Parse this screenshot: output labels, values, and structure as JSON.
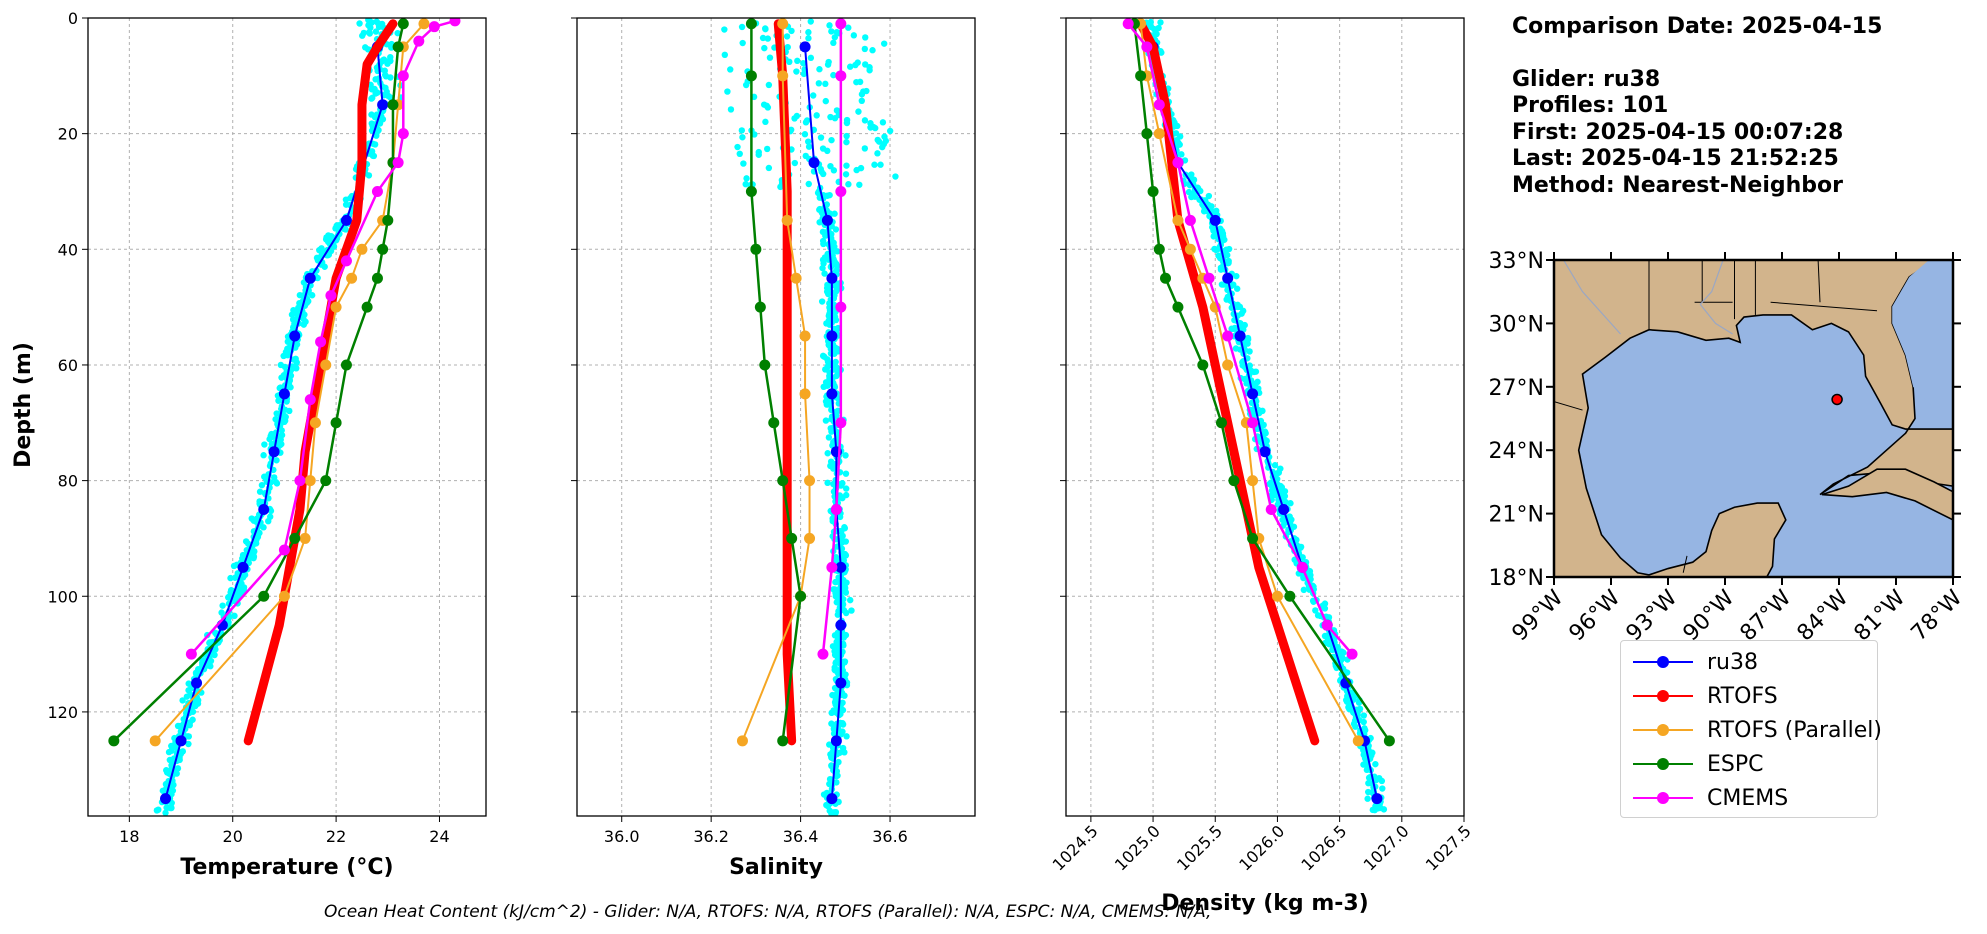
{
  "chart_data": {
    "type": "line",
    "series_styles": [
      {
        "name": "ru38",
        "color": "#0000ff",
        "marker": true,
        "lw": 2
      },
      {
        "name": "RTOFS",
        "color": "#ff0000",
        "marker": false,
        "lw": 9
      },
      {
        "name": "RTOFS (Parallel)",
        "color": "#f5a623",
        "marker": true,
        "lw": 2
      },
      {
        "name": "ESPC",
        "color": "#008000",
        "marker": true,
        "lw": 2.5
      },
      {
        "name": "CMEMS",
        "color": "#ff00ff",
        "marker": true,
        "lw": 2.5
      }
    ],
    "glider_cloud_color": "#00ffff",
    "ylabel": "Depth (m)",
    "ylim": [
      0,
      138
    ],
    "yticks": [
      0,
      20,
      40,
      60,
      80,
      100,
      120
    ],
    "panels": [
      {
        "id": "temperature",
        "xlabel": "Temperature (°C)",
        "xlim": [
          17.2,
          24.9
        ],
        "xticks": [
          18,
          20,
          22,
          24
        ],
        "xtick_labels": [
          "18",
          "20",
          "22",
          "24"
        ],
        "tick_rotation": 0,
        "series": [
          {
            "name": "ru38",
            "points": [
              [
                22.8,
                5
              ],
              [
                22.9,
                15
              ],
              [
                22.2,
                35
              ],
              [
                21.5,
                45
              ],
              [
                21.2,
                55
              ],
              [
                21.0,
                65
              ],
              [
                20.8,
                75
              ],
              [
                20.6,
                85
              ],
              [
                20.2,
                95
              ],
              [
                19.8,
                105
              ],
              [
                19.3,
                115
              ],
              [
                19.0,
                125
              ],
              [
                18.7,
                135
              ]
            ]
          },
          {
            "name": "RTOFS",
            "points": [
              [
                23.1,
                1
              ],
              [
                22.8,
                5
              ],
              [
                22.6,
                8
              ],
              [
                22.5,
                15
              ],
              [
                22.5,
                25
              ],
              [
                22.4,
                35
              ],
              [
                22.0,
                45
              ],
              [
                21.8,
                55
              ],
              [
                21.6,
                65
              ],
              [
                21.4,
                75
              ],
              [
                21.3,
                85
              ],
              [
                21.1,
                95
              ],
              [
                20.9,
                105
              ],
              [
                20.6,
                115
              ],
              [
                20.3,
                125
              ]
            ]
          },
          {
            "name": "RTOFS (Parallel)",
            "points": [
              [
                23.7,
                1
              ],
              [
                23.3,
                5
              ],
              [
                23.2,
                15
              ],
              [
                23.1,
                25
              ],
              [
                22.9,
                35
              ],
              [
                22.5,
                40
              ],
              [
                22.3,
                45
              ],
              [
                22.0,
                50
              ],
              [
                21.8,
                60
              ],
              [
                21.6,
                70
              ],
              [
                21.5,
                80
              ],
              [
                21.4,
                90
              ],
              [
                21.0,
                100
              ],
              [
                18.5,
                125
              ]
            ]
          },
          {
            "name": "ESPC",
            "points": [
              [
                23.3,
                1
              ],
              [
                23.2,
                5
              ],
              [
                23.1,
                15
              ],
              [
                23.1,
                25
              ],
              [
                23.0,
                35
              ],
              [
                22.9,
                40
              ],
              [
                22.8,
                45
              ],
              [
                22.6,
                50
              ],
              [
                22.2,
                60
              ],
              [
                22.0,
                70
              ],
              [
                21.8,
                80
              ],
              [
                21.2,
                90
              ],
              [
                20.6,
                100
              ],
              [
                17.7,
                125
              ]
            ]
          },
          {
            "name": "CMEMS",
            "points": [
              [
                24.3,
                0.5
              ],
              [
                23.9,
                1.5
              ],
              [
                23.6,
                4
              ],
              [
                23.3,
                10
              ],
              [
                23.3,
                20
              ],
              [
                23.2,
                25
              ],
              [
                22.8,
                30
              ],
              [
                22.2,
                42
              ],
              [
                21.9,
                48
              ],
              [
                21.7,
                56
              ],
              [
                21.5,
                66
              ],
              [
                21.3,
                80
              ],
              [
                21.0,
                92
              ],
              [
                19.2,
                110
              ]
            ]
          }
        ]
      },
      {
        "id": "salinity",
        "xlabel": "Salinity",
        "xlim": [
          35.9,
          36.79
        ],
        "xticks": [
          36.0,
          36.2,
          36.4,
          36.6
        ],
        "xtick_labels": [
          "36.0",
          "36.2",
          "36.4",
          "36.6"
        ],
        "tick_rotation": 0,
        "series": [
          {
            "name": "ru38",
            "points": [
              [
                36.41,
                5
              ],
              [
                36.43,
                25
              ],
              [
                36.46,
                35
              ],
              [
                36.47,
                45
              ],
              [
                36.47,
                55
              ],
              [
                36.47,
                65
              ],
              [
                36.48,
                75
              ],
              [
                36.48,
                85
              ],
              [
                36.49,
                95
              ],
              [
                36.49,
                105
              ],
              [
                36.49,
                115
              ],
              [
                36.48,
                125
              ],
              [
                36.47,
                135
              ]
            ]
          },
          {
            "name": "RTOFS",
            "points": [
              [
                36.35,
                1
              ],
              [
                36.36,
                10
              ],
              [
                36.37,
                30
              ],
              [
                36.37,
                50
              ],
              [
                36.37,
                70
              ],
              [
                36.37,
                90
              ],
              [
                36.37,
                110
              ],
              [
                36.38,
                125
              ]
            ]
          },
          {
            "name": "RTOFS (Parallel)",
            "points": [
              [
                36.36,
                1
              ],
              [
                36.36,
                10
              ],
              [
                36.37,
                35
              ],
              [
                36.39,
                45
              ],
              [
                36.41,
                55
              ],
              [
                36.41,
                65
              ],
              [
                36.42,
                80
              ],
              [
                36.42,
                90
              ],
              [
                36.4,
                100
              ],
              [
                36.27,
                125
              ]
            ]
          },
          {
            "name": "ESPC",
            "points": [
              [
                36.29,
                1
              ],
              [
                36.29,
                10
              ],
              [
                36.29,
                30
              ],
              [
                36.3,
                40
              ],
              [
                36.31,
                50
              ],
              [
                36.32,
                60
              ],
              [
                36.34,
                70
              ],
              [
                36.36,
                80
              ],
              [
                36.38,
                90
              ],
              [
                36.4,
                100
              ],
              [
                36.36,
                125
              ]
            ]
          },
          {
            "name": "CMEMS",
            "points": [
              [
                36.49,
                1
              ],
              [
                36.49,
                10
              ],
              [
                36.49,
                30
              ],
              [
                36.49,
                50
              ],
              [
                36.49,
                70
              ],
              [
                36.48,
                85
              ],
              [
                36.47,
                95
              ],
              [
                36.45,
                110
              ]
            ]
          }
        ]
      },
      {
        "id": "density",
        "xlabel": "Density (kg m-3)",
        "xlim": [
          1024.3,
          1027.5
        ],
        "xticks": [
          1024.5,
          1025.0,
          1025.5,
          1026.0,
          1026.5,
          1027.0,
          1027.5
        ],
        "xtick_labels": [
          "1024.5",
          "1025.0",
          "1025.5",
          "1026.0",
          "1026.5",
          "1027.0",
          "1027.5"
        ],
        "tick_rotation": -45,
        "series": [
          {
            "name": "ru38",
            "points": [
              [
                1025.0,
                5
              ],
              [
                1025.2,
                25
              ],
              [
                1025.5,
                35
              ],
              [
                1025.6,
                45
              ],
              [
                1025.7,
                55
              ],
              [
                1025.8,
                65
              ],
              [
                1025.9,
                75
              ],
              [
                1026.05,
                85
              ],
              [
                1026.2,
                95
              ],
              [
                1026.4,
                105
              ],
              [
                1026.55,
                115
              ],
              [
                1026.7,
                125
              ],
              [
                1026.8,
                135
              ]
            ]
          },
          {
            "name": "RTOFS",
            "points": [
              [
                1024.9,
                1
              ],
              [
                1025.0,
                5
              ],
              [
                1025.1,
                15
              ],
              [
                1025.2,
                35
              ],
              [
                1025.4,
                50
              ],
              [
                1025.55,
                65
              ],
              [
                1025.7,
                80
              ],
              [
                1025.85,
                95
              ],
              [
                1026.0,
                105
              ],
              [
                1026.15,
                115
              ],
              [
                1026.3,
                125
              ]
            ]
          },
          {
            "name": "RTOFS (Parallel)",
            "points": [
              [
                1024.9,
                1
              ],
              [
                1024.95,
                10
              ],
              [
                1025.05,
                20
              ],
              [
                1025.2,
                35
              ],
              [
                1025.3,
                40
              ],
              [
                1025.4,
                45
              ],
              [
                1025.5,
                50
              ],
              [
                1025.6,
                60
              ],
              [
                1025.75,
                70
              ],
              [
                1025.8,
                80
              ],
              [
                1025.85,
                90
              ],
              [
                1026.0,
                100
              ],
              [
                1026.65,
                125
              ]
            ]
          },
          {
            "name": "ESPC",
            "points": [
              [
                1024.85,
                1
              ],
              [
                1024.9,
                10
              ],
              [
                1024.95,
                20
              ],
              [
                1025.0,
                30
              ],
              [
                1025.05,
                40
              ],
              [
                1025.1,
                45
              ],
              [
                1025.2,
                50
              ],
              [
                1025.4,
                60
              ],
              [
                1025.55,
                70
              ],
              [
                1025.65,
                80
              ],
              [
                1025.8,
                90
              ],
              [
                1026.1,
                100
              ],
              [
                1026.9,
                125
              ]
            ]
          },
          {
            "name": "CMEMS",
            "points": [
              [
                1024.8,
                1
              ],
              [
                1024.95,
                5
              ],
              [
                1025.05,
                15
              ],
              [
                1025.2,
                25
              ],
              [
                1025.3,
                35
              ],
              [
                1025.45,
                45
              ],
              [
                1025.6,
                55
              ],
              [
                1025.8,
                70
              ],
              [
                1025.95,
                85
              ],
              [
                1026.2,
                95
              ],
              [
                1026.4,
                105
              ],
              [
                1026.6,
                110
              ]
            ]
          }
        ]
      }
    ],
    "map": {
      "lon_ticks": [
        -99,
        -96,
        -93,
        -90,
        -87,
        -84,
        -81,
        -78
      ],
      "lon_labels": [
        "99°W",
        "96°W",
        "93°W",
        "90°W",
        "87°W",
        "84°W",
        "81°W",
        "78°W"
      ],
      "lat_ticks": [
        18,
        21,
        24,
        27,
        30,
        33
      ],
      "lat_labels": [
        "18°N",
        "21°N",
        "24°N",
        "27°N",
        "30°N",
        "33°N"
      ],
      "lon_range": [
        -99,
        -78
      ],
      "lat_range": [
        18,
        33
      ],
      "land_color": "#d2b48c",
      "water_color": "#96b5e3",
      "glider_position": [
        -84.1,
        26.4
      ],
      "glider_marker_color": "#ff0000"
    }
  },
  "info": {
    "date_line": "Comparison Date: 2025-04-15",
    "glider_line": "Glider: ru38",
    "profiles_line": "Profiles: 101",
    "first_line": "First: 2025-04-15 00:07:28",
    "last_line": "Last: 2025-04-15 21:52:25",
    "method_line": "Method: Nearest-Neighbor"
  },
  "legend": [
    "ru38",
    "RTOFS",
    "RTOFS (Parallel)",
    "ESPC",
    "CMEMS"
  ],
  "footer": "Ocean Heat Content (kJ/cm^2) - Glider: N/A,  RTOFS: N/A,  RTOFS (Parallel): N/A,  ESPC: N/A,  CMEMS: N/A,"
}
